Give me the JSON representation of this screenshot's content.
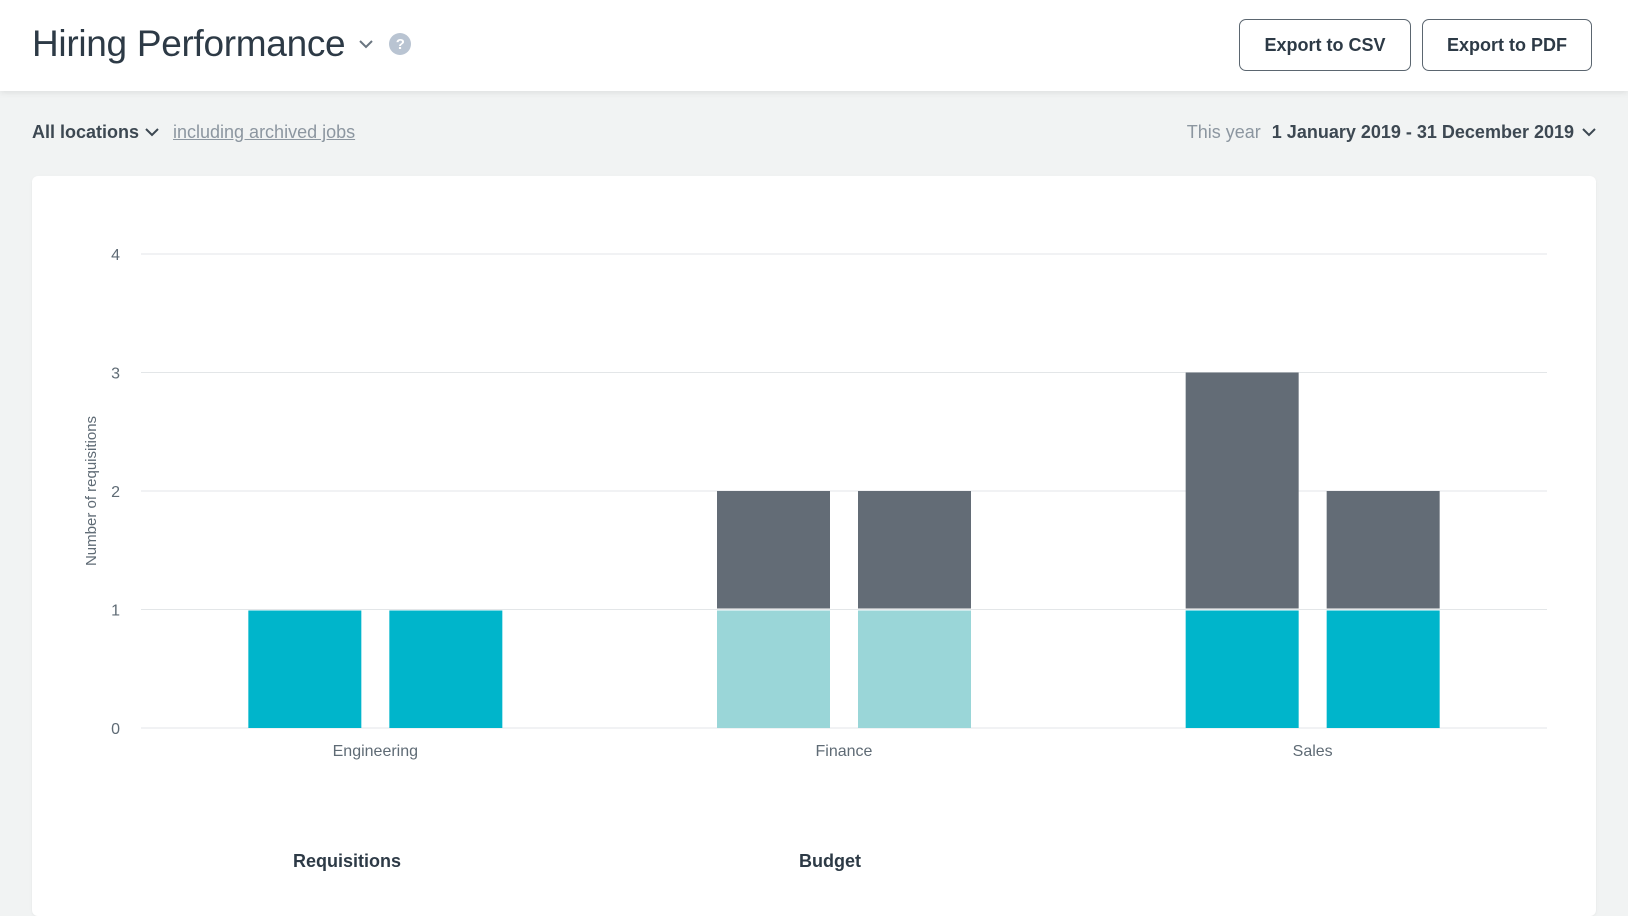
{
  "header": {
    "title": "Hiring Performance",
    "export_csv_label": "Export to CSV",
    "export_pdf_label": "Export to PDF",
    "help_icon": "question-circle-icon",
    "title_dropdown_icon": "chevron-down-icon"
  },
  "filters": {
    "location_label": "All locations",
    "archived_link": "including archived jobs",
    "date_prefix": "This year",
    "date_range": "1 January 2019 - 31 December 2019"
  },
  "legend": {
    "requisitions": "Requisitions",
    "budget": "Budget"
  },
  "colors": {
    "teal": "#00b5cb",
    "light_teal": "#9ad6d8",
    "slate": "#636c76",
    "gridline": "#e3e6e8",
    "axis_text": "#5f6b75"
  },
  "chart_data": {
    "type": "bar",
    "stacked": true,
    "ylabel": "Number of requisitions",
    "xlabel": "",
    "ylim": [
      0,
      4
    ],
    "yticks": [
      0,
      1,
      2,
      3,
      4
    ],
    "categories": [
      "Engineering",
      "Finance",
      "Sales"
    ],
    "bars_per_category": 2,
    "groups": [
      {
        "category": "Engineering",
        "bars": [
          {
            "segments": [
              {
                "value": 1,
                "color": "#00b5cb"
              }
            ]
          },
          {
            "segments": [
              {
                "value": 1,
                "color": "#00b5cb"
              }
            ]
          }
        ]
      },
      {
        "category": "Finance",
        "bars": [
          {
            "segments": [
              {
                "value": 1,
                "color": "#9ad6d8"
              },
              {
                "value": 1,
                "color": "#636c76"
              }
            ]
          },
          {
            "segments": [
              {
                "value": 1,
                "color": "#9ad6d8"
              },
              {
                "value": 1,
                "color": "#636c76"
              }
            ]
          }
        ]
      },
      {
        "category": "Sales",
        "bars": [
          {
            "segments": [
              {
                "value": 1,
                "color": "#00b5cb"
              },
              {
                "value": 2,
                "color": "#636c76"
              }
            ]
          },
          {
            "segments": [
              {
                "value": 1,
                "color": "#00b5cb"
              },
              {
                "value": 1,
                "color": "#636c76"
              }
            ]
          }
        ]
      }
    ],
    "grid": true
  }
}
